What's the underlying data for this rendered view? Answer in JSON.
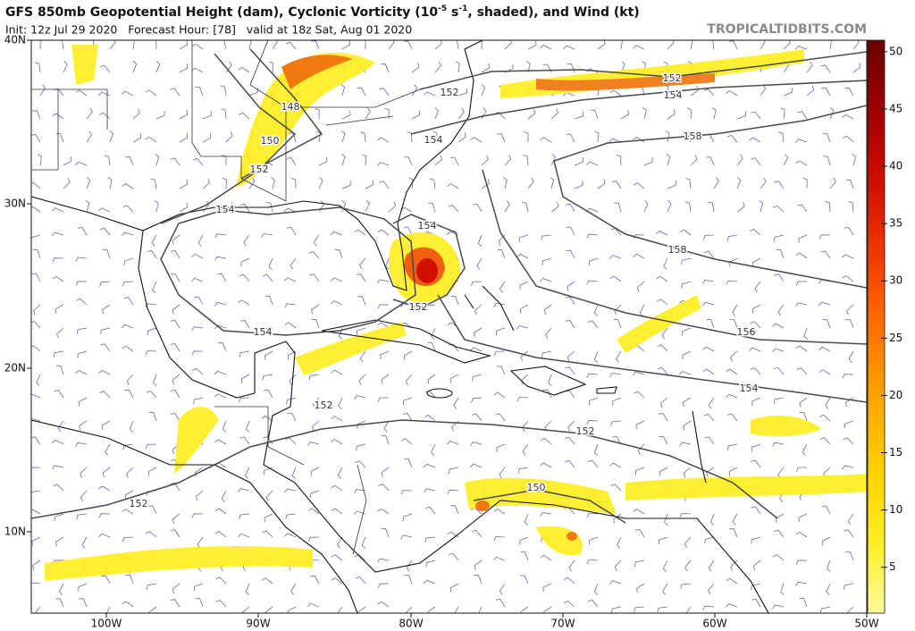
{
  "header": {
    "title_parts": [
      "GFS 850mb Geopotential Height (dam), Cyclonic Vorticity (10",
      "-5",
      " s",
      "-1",
      ", shaded), and Wind (kt)"
    ],
    "subtitle": "Init: 12z Jul 29 2020   Forecast Hour: [78]   valid at 18z Sat, Aug 01 2020",
    "source": "TROPICALTIDBITS.COM"
  },
  "map": {
    "lat_labels": [
      "40N",
      "30N",
      "20N",
      "10N"
    ],
    "lon_labels": [
      "100W",
      "90W",
      "80W",
      "70W",
      "60W",
      "50W"
    ],
    "contour_labels": [
      "148",
      "150",
      "152",
      "152",
      "154",
      "154",
      "154",
      "152",
      "154",
      "152",
      "152",
      "150",
      "152",
      "154",
      "156",
      "158",
      "158",
      "154",
      "152"
    ]
  },
  "colorbar": {
    "lim": [
      1,
      51
    ],
    "ticks": [
      5,
      10,
      15,
      20,
      25,
      30,
      35,
      40,
      45,
      50
    ],
    "colors": [
      "#fffaa0",
      "#ffee22",
      "#ffd000",
      "#ffa500",
      "#ff7000",
      "#f03a00",
      "#d01000",
      "#a00000",
      "#6a0000"
    ]
  }
}
